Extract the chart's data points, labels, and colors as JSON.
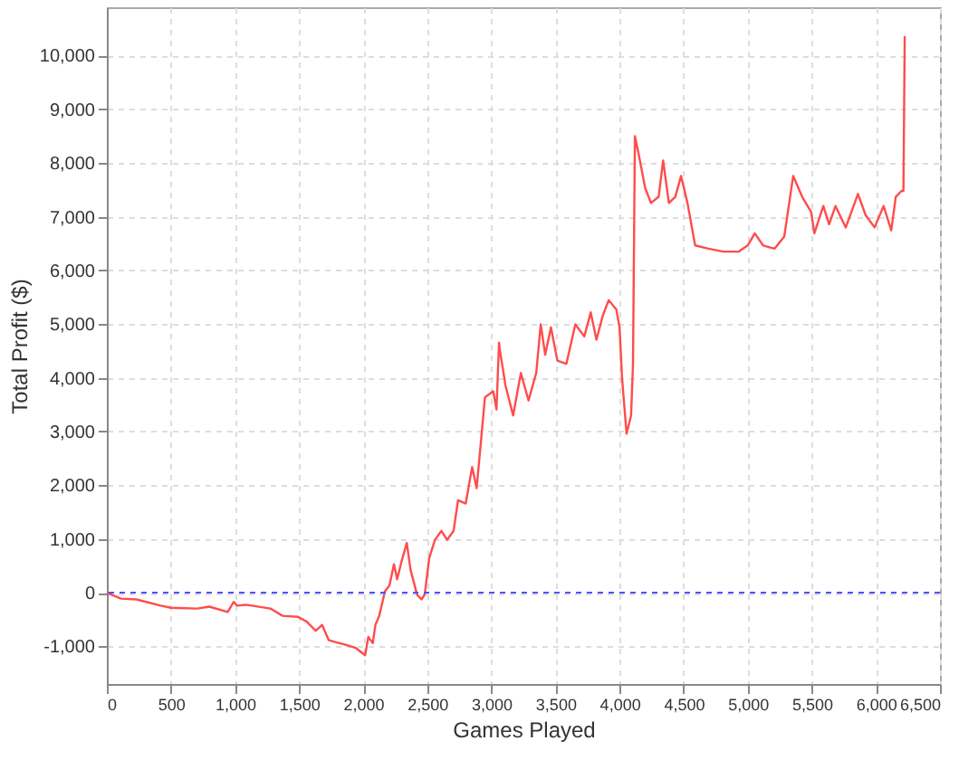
{
  "chart_data": {
    "type": "line",
    "xlabel": "Games Played",
    "ylabel": "Total Profit ($)",
    "xlim": [
      0,
      6500
    ],
    "ylim": [
      -1700,
      10900
    ],
    "xticks": [
      {
        "value": 0,
        "label": "0"
      },
      {
        "value": 500,
        "label": "500"
      },
      {
        "value": 1000,
        "label": "1,000"
      },
      {
        "value": 1500,
        "label": "1,500"
      },
      {
        "value": 2000,
        "label": "2,000"
      },
      {
        "value": 2500,
        "label": "2,500"
      },
      {
        "value": 3000,
        "label": "3,000"
      },
      {
        "value": 3500,
        "label": "3,500"
      },
      {
        "value": 4000,
        "label": "4,000"
      },
      {
        "value": 4500,
        "label": "4,500"
      },
      {
        "value": 5000,
        "label": "5,000"
      },
      {
        "value": 5500,
        "label": "5,500"
      },
      {
        "value": 6000,
        "label": "6,000"
      },
      {
        "value": 6500,
        "label": "6,500"
      }
    ],
    "yticks": [
      {
        "value": -1000,
        "label": "-1,000"
      },
      {
        "value": 0,
        "label": "0"
      },
      {
        "value": 1000,
        "label": "1,000"
      },
      {
        "value": 2000,
        "label": "2,000"
      },
      {
        "value": 3000,
        "label": "3,000"
      },
      {
        "value": 4000,
        "label": "4,000"
      },
      {
        "value": 5000,
        "label": "5,000"
      },
      {
        "value": 6000,
        "label": "6,000"
      },
      {
        "value": 7000,
        "label": "7,000"
      },
      {
        "value": 8000,
        "label": "8,000"
      },
      {
        "value": 9000,
        "label": "9,000"
      },
      {
        "value": 10000,
        "label": "10,000"
      }
    ],
    "grid": true,
    "ref_lines": [
      {
        "axis": "y",
        "value": 0,
        "color": "#5050ff",
        "line_style": "dashed"
      }
    ],
    "series": [
      {
        "color": "#ff4c4c",
        "x": [
          0,
          110,
          230,
          420,
          500,
          705,
          800,
          943,
          990,
          1015,
          1085,
          1276,
          1370,
          1490,
          1560,
          1630,
          1680,
          1730,
          1775,
          1850,
          1943,
          2015,
          2040,
          2075,
          2095,
          2125,
          2170,
          2205,
          2240,
          2265,
          2300,
          2340,
          2370,
          2420,
          2455,
          2480,
          2515,
          2560,
          2610,
          2655,
          2705,
          2740,
          2800,
          2850,
          2885,
          2920,
          2950,
          3015,
          3040,
          3060,
          3065,
          3110,
          3170,
          3230,
          3290,
          3350,
          3385,
          3420,
          3465,
          3515,
          3585,
          3655,
          3725,
          3775,
          3820,
          3870,
          3915,
          3975,
          4000,
          4020,
          4055,
          4090,
          4105,
          4120,
          4150,
          4200,
          4245,
          4305,
          4340,
          4385,
          4435,
          4480,
          4530,
          4590,
          4695,
          4810,
          4930,
          5000,
          5055,
          5120,
          5210,
          5285,
          5355,
          5425,
          5495,
          5520,
          5590,
          5635,
          5685,
          5765,
          5860,
          5920,
          5990,
          6060,
          6120,
          6155,
          6200,
          6215,
          6225
        ],
        "values": [
          0,
          -110,
          -125,
          -240,
          -280,
          -295,
          -260,
          -360,
          -170,
          -240,
          -225,
          -295,
          -430,
          -450,
          -540,
          -710,
          -600,
          -880,
          -915,
          -960,
          -1030,
          -1165,
          -825,
          -940,
          -600,
          -430,
          25,
          135,
          530,
          250,
          590,
          925,
          420,
          -35,
          -125,
          -35,
          645,
          985,
          1150,
          985,
          1150,
          1720,
          1660,
          2340,
          1945,
          2850,
          3640,
          3750,
          3410,
          4655,
          4540,
          3860,
          3300,
          4090,
          3580,
          4090,
          4995,
          4430,
          4940,
          4320,
          4260,
          4995,
          4770,
          5220,
          4710,
          5165,
          5445,
          5275,
          4940,
          3980,
          2960,
          3300,
          4260,
          8500,
          8160,
          7535,
          7255,
          7370,
          8045,
          7255,
          7370,
          7760,
          7255,
          6465,
          6405,
          6350,
          6350,
          6465,
          6690,
          6465,
          6405,
          6630,
          7760,
          7370,
          7085,
          6690,
          7200,
          6860,
          7200,
          6800,
          7425,
          7030,
          6800,
          7200,
          6745,
          7370,
          7480,
          7480,
          10360
        ]
      }
    ]
  }
}
